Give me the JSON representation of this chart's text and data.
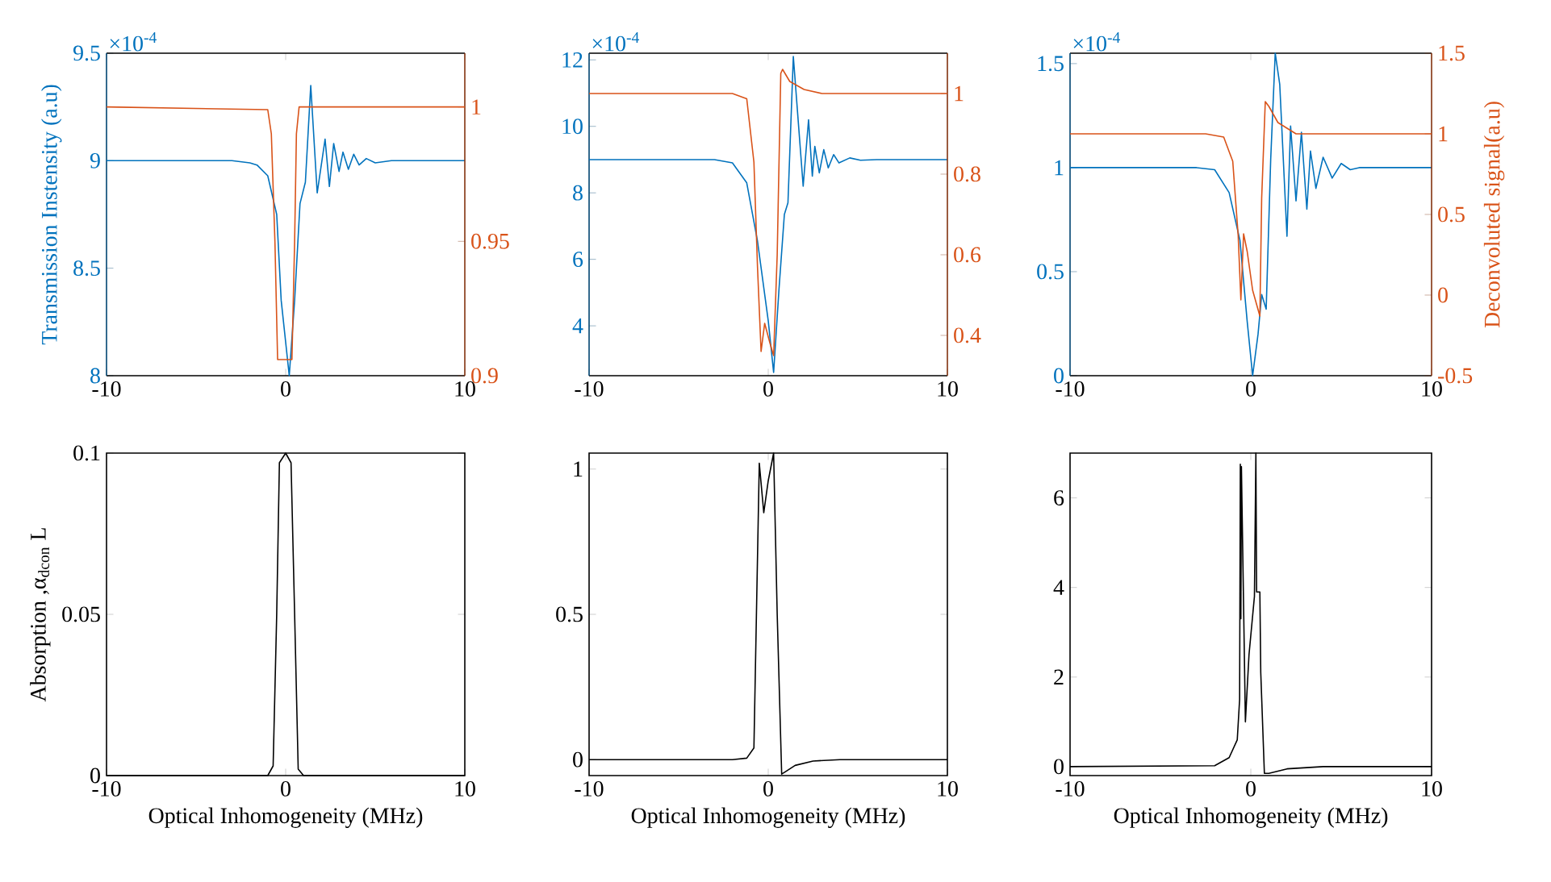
{
  "chart_data": [
    {
      "type": "line",
      "ylabel": "Transmission Instensity (a.u)",
      "annotations": [
        "×10$^{-4}$"
      ],
      "xlim": [
        -10,
        10
      ],
      "xticks": [
        -10,
        0,
        10
      ],
      "ylim": [
        8,
        9.5
      ],
      "yticks": [
        8,
        8.5,
        9,
        9.5
      ],
      "y2lim": [
        0.9,
        1.02
      ],
      "y2ticks": [
        0.9,
        0.95,
        1
      ],
      "series": [
        {
          "color": "#0072bd",
          "x": [
            -10,
            -3,
            -2,
            -1.6,
            -1,
            -0.5,
            -0.25,
            0.2,
            0.5,
            0.8,
            1.1,
            1.4,
            1.76,
            2.2,
            2.44,
            2.68,
            2.98,
            3.2,
            3.5,
            3.8,
            4.1,
            4.5,
            5,
            5.9,
            10
          ],
          "values": [
            9,
            9,
            8.99,
            8.98,
            8.93,
            8.75,
            8.35,
            8.0,
            8.35,
            8.8,
            8.9,
            9.35,
            8.85,
            9.1,
            8.88,
            9.08,
            8.95,
            9.04,
            8.96,
            9.03,
            8.98,
            9.01,
            8.99,
            9.0,
            9.0
          ]
        },
        {
          "color": "#d95319",
          "axis": "y2",
          "x": [
            -10,
            -1.0,
            -0.8,
            -0.6,
            -0.45,
            0.35,
            0.5,
            0.6,
            0.75,
            1,
            10
          ],
          "values": [
            1,
            0.999,
            0.99,
            0.95,
            0.906,
            0.906,
            0.95,
            0.99,
            1.0,
            1.0,
            1.0
          ]
        }
      ]
    },
    {
      "type": "line",
      "annotations": [
        "×10$^{-4}$"
      ],
      "xlim": [
        -10,
        10
      ],
      "xticks": [
        -10,
        0,
        10
      ],
      "ylim": [
        2.5,
        12.2
      ],
      "yticks": [
        4,
        6,
        8,
        10,
        12
      ],
      "y2lim": [
        0.3,
        1.1
      ],
      "y2ticks": [
        0.4,
        0.6,
        0.8,
        1
      ],
      "series": [
        {
          "color": "#0072bd",
          "x": [
            -10,
            -3,
            -2,
            -1.2,
            -0.6,
            0,
            0.3,
            0.6,
            0.9,
            1.1,
            1.4,
            1.95,
            2.25,
            2.46,
            2.6,
            2.85,
            3.1,
            3.35,
            3.65,
            3.95,
            4.55,
            5.15,
            6.05,
            10
          ],
          "values": [
            9,
            9,
            8.9,
            8.3,
            6.55,
            4.15,
            2.6,
            5.1,
            7.35,
            7.7,
            12.1,
            8.2,
            10.2,
            8.5,
            9.4,
            8.6,
            9.3,
            8.75,
            9.15,
            8.9,
            9.05,
            8.98,
            9.0,
            9.0
          ]
        },
        {
          "color": "#d95319",
          "axis": "y2",
          "x": [
            -10,
            -2,
            -1.2,
            -0.8,
            -0.6,
            -0.4,
            -0.2,
            0.1,
            0.3,
            0.5,
            0.7,
            0.8,
            1.2,
            2,
            3,
            10
          ],
          "values": [
            1,
            1,
            0.987,
            0.83,
            0.57,
            0.36,
            0.43,
            0.38,
            0.35,
            0.6,
            1.05,
            1.06,
            1.03,
            1.01,
            1.0,
            1.0
          ]
        }
      ]
    },
    {
      "type": "line",
      "y2label": "Deconvoluted signal(a.u)",
      "annotations": [
        "×10$^{-4}$"
      ],
      "xlim": [
        -10,
        10
      ],
      "xticks": [
        -10,
        0,
        10
      ],
      "ylim": [
        0,
        1.55
      ],
      "yticks": [
        0,
        0.5,
        1,
        1.5
      ],
      "y2lim": [
        -0.5,
        1.5
      ],
      "y2ticks": [
        -0.5,
        0,
        0.5,
        1,
        1.5
      ],
      "series": [
        {
          "color": "#0072bd",
          "x": [
            -10,
            -3,
            -2,
            -1.2,
            -0.6,
            -0.2,
            0.1,
            0.4,
            0.6,
            0.85,
            1.1,
            1.35,
            1.6,
            2.0,
            2.2,
            2.5,
            2.8,
            3.1,
            3.3,
            3.6,
            4.0,
            4.5,
            5,
            5.5,
            6,
            10
          ],
          "values": [
            1,
            1,
            0.99,
            0.88,
            0.65,
            0.26,
            0,
            0.2,
            0.39,
            0.32,
            1.04,
            1.55,
            1.4,
            0.67,
            1.2,
            0.84,
            1.17,
            0.8,
            1.08,
            0.9,
            1.05,
            0.95,
            1.02,
            0.99,
            1.0,
            1.0
          ]
        },
        {
          "color": "#d95319",
          "axis": "y2",
          "x": [
            -10,
            -2.5,
            -1.5,
            -1,
            -0.7,
            -0.55,
            -0.4,
            -0.2,
            0.1,
            0.5,
            0.6,
            0.8,
            1,
            1.5,
            2.5,
            10
          ],
          "values": [
            1,
            1,
            0.98,
            0.83,
            0.37,
            -0.03,
            0.38,
            0.27,
            0.03,
            -0.13,
            0.6,
            1.2,
            1.17,
            1.07,
            1.0,
            1.0
          ]
        }
      ]
    },
    {
      "type": "line",
      "ylabel": "Absorption ,α$_{dcon}$ L",
      "xlabel": "Optical Inhomogeneity (MHz)",
      "xlim": [
        -10,
        10
      ],
      "xticks": [
        -10,
        0,
        10
      ],
      "ylim": [
        0,
        0.1
      ],
      "yticks": [
        0,
        0.05,
        0.1
      ],
      "series": [
        {
          "color": "#000000",
          "x": [
            -10,
            -1,
            -0.7,
            -0.5,
            -0.35,
            0,
            0.3,
            0.5,
            0.7,
            1,
            10
          ],
          "values": [
            0,
            0,
            0.003,
            0.05,
            0.097,
            0.1,
            0.097,
            0.05,
            0.002,
            0,
            0
          ]
        }
      ]
    },
    {
      "type": "line",
      "xlabel": "Optical Inhomogeneity (MHz)",
      "xlim": [
        -10,
        10
      ],
      "xticks": [
        -10,
        0,
        10
      ],
      "ylim": [
        -0.055,
        1.055
      ],
      "yticks": [
        0,
        0.5,
        1
      ],
      "series": [
        {
          "color": "#000000",
          "x": [
            -10,
            -2,
            -1.2,
            -0.8,
            -0.5,
            -0.25,
            0,
            0.3,
            0.5,
            0.75,
            1,
            1.5,
            2.5,
            4,
            10
          ],
          "values": [
            0,
            0,
            0.005,
            0.04,
            1.02,
            0.85,
            0.96,
            1.055,
            0.5,
            -0.05,
            -0.04,
            -0.02,
            -0.005,
            0,
            0
          ]
        }
      ]
    },
    {
      "type": "line",
      "xlabel": "Optical Inhomogeneity (MHz)",
      "xlim": [
        -10,
        10
      ],
      "xticks": [
        -10,
        0,
        10
      ],
      "ylim": [
        -0.2,
        7
      ],
      "yticks": [
        0,
        2,
        4,
        6
      ],
      "series": [
        {
          "color": "#000000",
          "x": [
            -10,
            -2,
            -1.2,
            -0.75,
            -0.62,
            -0.58,
            -0.55,
            -0.52,
            -0.3,
            -0.1,
            0.2,
            0.28,
            0.32,
            0.5,
            0.55,
            0.75,
            1,
            2,
            4,
            10
          ],
          "values": [
            0,
            0.02,
            0.2,
            0.6,
            1.5,
            6.75,
            3.3,
            6.7,
            1.0,
            2.5,
            3.8,
            7,
            3.9,
            3.9,
            2.1,
            -0.15,
            -0.15,
            -0.05,
            0,
            0
          ]
        }
      ]
    }
  ]
}
